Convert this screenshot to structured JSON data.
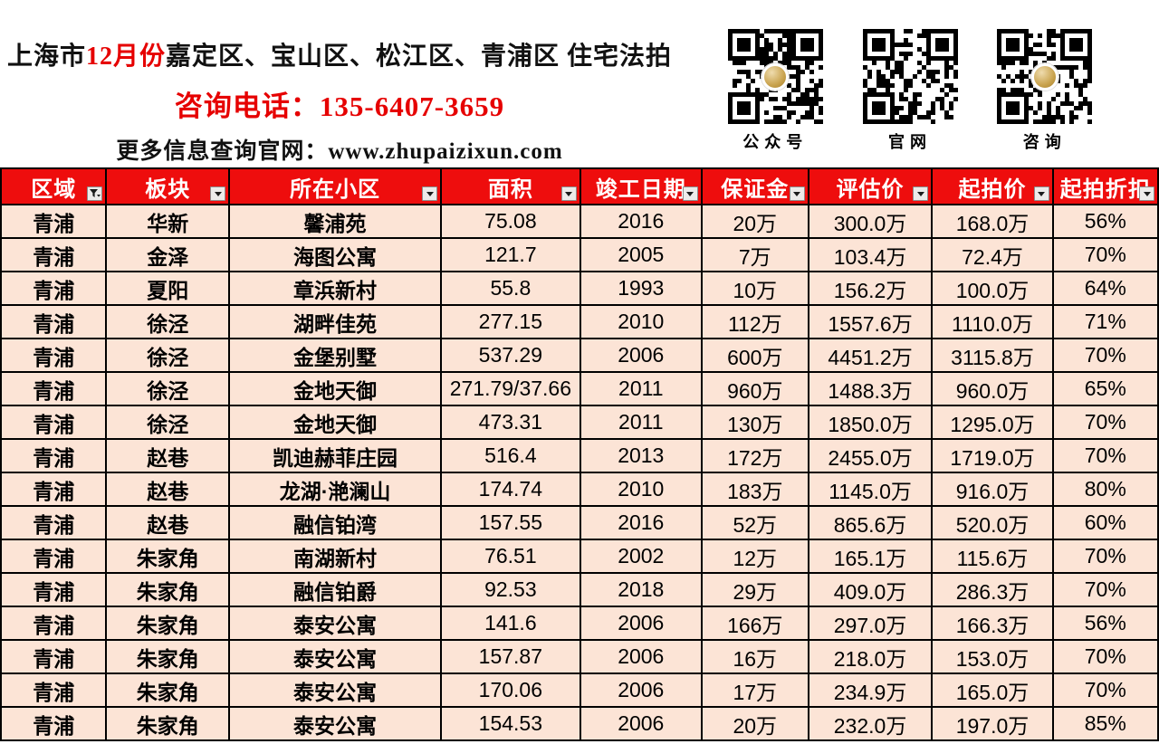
{
  "header": {
    "title": {
      "prefix": "上海市",
      "highlight": "12月份",
      "suffix": "嘉定区、宝山区、松江区、青浦区 住宅法拍"
    },
    "phone_line": "咨询电话：135-6407-3659",
    "site_label": "更多信息查询官网：",
    "site_url": "www.zhupaizixun.com",
    "qr_codes": [
      {
        "label": "公众号",
        "has_logo": true
      },
      {
        "label": "官网",
        "has_logo": false
      },
      {
        "label": "咨询",
        "has_logo": true
      }
    ]
  },
  "table": {
    "columns": [
      {
        "label": "区域",
        "filter": "funnel"
      },
      {
        "label": "板块",
        "filter": "arrow"
      },
      {
        "label": "所在小区",
        "filter": "arrow"
      },
      {
        "label": "面积",
        "filter": "arrow"
      },
      {
        "label": "竣工日期",
        "filter": "arrow"
      },
      {
        "label": "保证金",
        "filter": "arrow"
      },
      {
        "label": "评估价",
        "filter": "arrow"
      },
      {
        "label": "起拍价",
        "filter": "arrow"
      },
      {
        "label": "起拍折扣",
        "filter": "arrow"
      }
    ],
    "rows": [
      [
        "青浦",
        "华新",
        "馨浦苑",
        "75.08",
        "2016",
        "20万",
        "300.0万",
        "168.0万",
        "56%"
      ],
      [
        "青浦",
        "金泽",
        "海图公寓",
        "121.7",
        "2005",
        "7万",
        "103.4万",
        "72.4万",
        "70%"
      ],
      [
        "青浦",
        "夏阳",
        "章浜新村",
        "55.8",
        "1993",
        "10万",
        "156.2万",
        "100.0万",
        "64%"
      ],
      [
        "青浦",
        "徐泾",
        "湖畔佳苑",
        "277.15",
        "2010",
        "112万",
        "1557.6万",
        "1110.0万",
        "71%"
      ],
      [
        "青浦",
        "徐泾",
        "金堡别墅",
        "537.29",
        "2006",
        "600万",
        "4451.2万",
        "3115.8万",
        "70%"
      ],
      [
        "青浦",
        "徐泾",
        "金地天御",
        "271.79/37.66",
        "2011",
        "960万",
        "1488.3万",
        "960.0万",
        "65%"
      ],
      [
        "青浦",
        "徐泾",
        "金地天御",
        "473.31",
        "2011",
        "130万",
        "1850.0万",
        "1295.0万",
        "70%"
      ],
      [
        "青浦",
        "赵巷",
        "凯迪赫菲庄园",
        "516.4",
        "2013",
        "172万",
        "2455.0万",
        "1719.0万",
        "70%"
      ],
      [
        "青浦",
        "赵巷",
        "龙湖·滟澜山",
        "174.74",
        "2010",
        "183万",
        "1145.0万",
        "916.0万",
        "80%"
      ],
      [
        "青浦",
        "赵巷",
        "融信铂湾",
        "157.55",
        "2016",
        "52万",
        "865.6万",
        "520.0万",
        "60%"
      ],
      [
        "青浦",
        "朱家角",
        "南湖新村",
        "76.51",
        "2002",
        "12万",
        "165.1万",
        "115.6万",
        "70%"
      ],
      [
        "青浦",
        "朱家角",
        "融信铂爵",
        "92.53",
        "2018",
        "29万",
        "409.0万",
        "286.3万",
        "70%"
      ],
      [
        "青浦",
        "朱家角",
        "泰安公寓",
        "141.6",
        "2006",
        "166万",
        "297.0万",
        "166.3万",
        "56%"
      ],
      [
        "青浦",
        "朱家角",
        "泰安公寓",
        "157.87",
        "2006",
        "16万",
        "218.0万",
        "153.0万",
        "70%"
      ],
      [
        "青浦",
        "朱家角",
        "泰安公寓",
        "170.06",
        "2006",
        "17万",
        "234.9万",
        "165.0万",
        "70%"
      ],
      [
        "青浦",
        "朱家角",
        "泰安公寓",
        "154.53",
        "2006",
        "20万",
        "232.0万",
        "197.0万",
        "85%"
      ]
    ]
  },
  "colors": {
    "header_red": "#ee0d0d",
    "row_bg": "#fce4d6",
    "text_red": "#e60000",
    "qr_logo_gold": "#c9a34e"
  }
}
